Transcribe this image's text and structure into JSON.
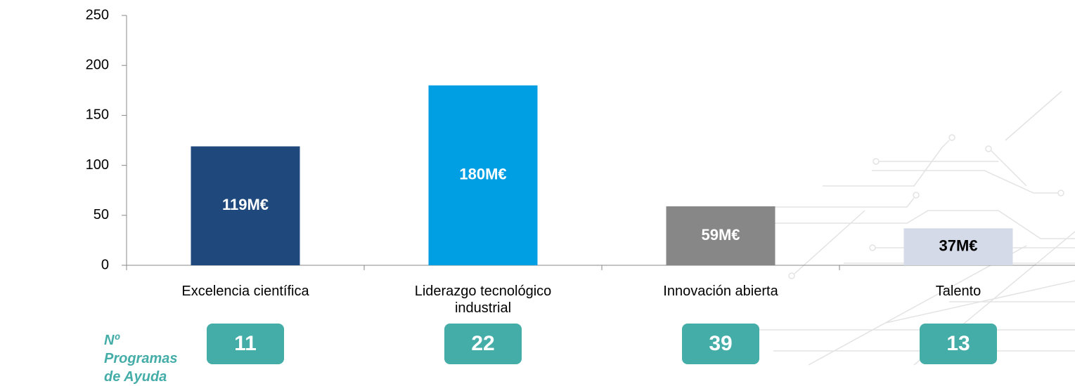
{
  "chart_data": {
    "type": "bar",
    "categories": [
      "Excelencia científica",
      "Liderazgo tecnológico industrial",
      "Innovación abierta",
      "Talento"
    ],
    "values": [
      119,
      180,
      59,
      37
    ],
    "value_labels": [
      "119M€",
      "180M€",
      "59M€",
      "37M€"
    ],
    "colors": [
      "#1F497D",
      "#009FE3",
      "#878787",
      "#D5DAE8"
    ],
    "value_label_colors": [
      "#ffffff",
      "#ffffff",
      "#ffffff",
      "#000000"
    ],
    "ylim": [
      0,
      250
    ],
    "yticks": [
      0,
      50,
      100,
      150,
      200,
      250
    ],
    "grid": false
  },
  "programs": {
    "label": "Nº Programas de Ayuda",
    "values": [
      11,
      22,
      39,
      13
    ]
  }
}
